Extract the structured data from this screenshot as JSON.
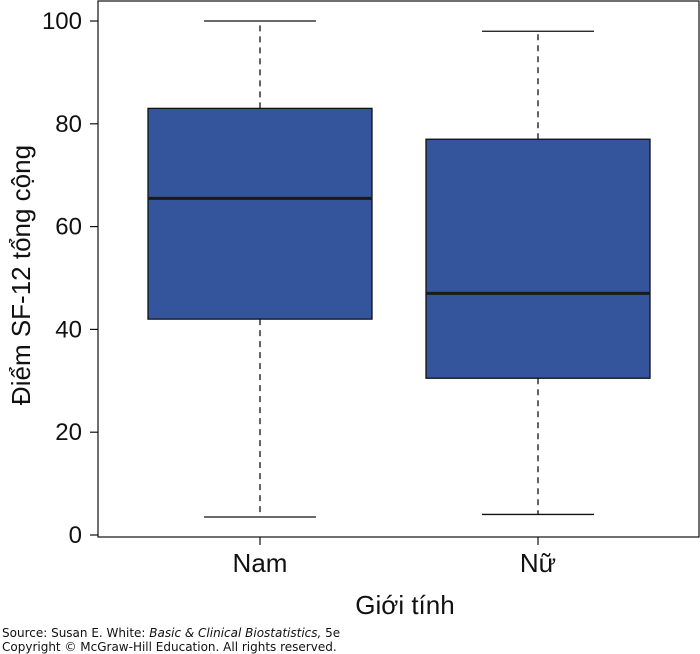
{
  "chart_data": {
    "type": "box",
    "xlabel": "Giới tính",
    "ylabel": "Điểm SF-12 tổng cộng",
    "ylim": [
      0,
      100
    ],
    "yticks": [
      0,
      20,
      40,
      60,
      80,
      100
    ],
    "categories": [
      "Nam",
      "Nữ"
    ],
    "boxes": [
      {
        "category": "Nam",
        "min": 3.5,
        "q1": 42,
        "median": 65.5,
        "q3": 83,
        "max": 100
      },
      {
        "category": "Nữ",
        "min": 4,
        "q1": 30.5,
        "median": 47,
        "q3": 77,
        "max": 98
      }
    ],
    "box_color": "#34559B",
    "grid": false
  },
  "source": {
    "prefix": "Source: Susan E. White: ",
    "book": "Basic & Clinical Biostatistics,",
    "edition": " 5e",
    "copyright": "Copyright © McGraw-Hill Education. All rights reserved."
  }
}
